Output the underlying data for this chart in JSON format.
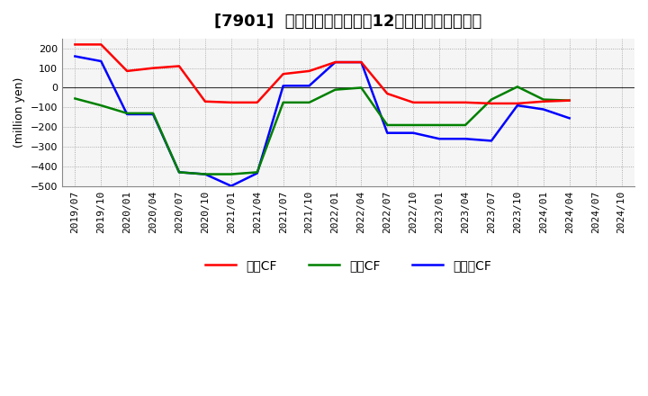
{
  "title": "[7901]  キャッシュフローの12か月移動合計の推移",
  "background_color": "#ffffff",
  "plot_bg_color": "#ffffff",
  "grid_color": "#999999",
  "x_labels": [
    "2019/07",
    "2019/10",
    "2020/01",
    "2020/04",
    "2020/07",
    "2020/10",
    "2021/01",
    "2021/04",
    "2021/07",
    "2021/10",
    "2022/01",
    "2022/04",
    "2022/07",
    "2022/10",
    "2023/01",
    "2023/04",
    "2023/07",
    "2023/10",
    "2024/01",
    "2024/04",
    "2024/07",
    "2024/10"
  ],
  "operating_cf": [
    220,
    220,
    85,
    100,
    110,
    -70,
    -75,
    -75,
    70,
    85,
    130,
    130,
    -30,
    -75,
    -75,
    -75,
    -80,
    -80,
    -70,
    -65,
    null,
    null
  ],
  "investing_cf": [
    -55,
    -90,
    -130,
    -130,
    -430,
    -440,
    -440,
    -430,
    -75,
    -75,
    -10,
    0,
    -190,
    -190,
    -190,
    -190,
    -60,
    5,
    -60,
    -65,
    null,
    null
  ],
  "free_cf": [
    160,
    135,
    -135,
    -135,
    -430,
    -440,
    -500,
    -435,
    10,
    10,
    130,
    130,
    -230,
    -230,
    -260,
    -260,
    -270,
    -90,
    -110,
    -155,
    null,
    null
  ],
  "ylim": [
    -500,
    250
  ],
  "yticks": [
    -500,
    -400,
    -300,
    -200,
    -100,
    0,
    100,
    200
  ],
  "legend_labels": [
    "営業CF",
    "投資CF",
    "フリーCF"
  ],
  "line_colors": [
    "#ff0000",
    "#008000",
    "#0000ff"
  ],
  "title_fontsize": 13,
  "label_fontsize": 9,
  "tick_fontsize": 8
}
